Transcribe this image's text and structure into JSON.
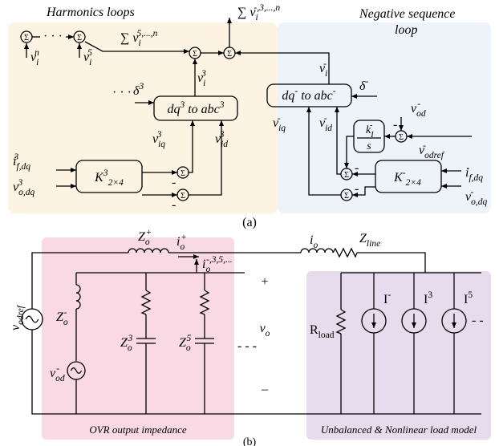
{
  "panel_a": {
    "title_left": "Harmonics loops",
    "title_right_line1": "Negative sequence",
    "title_right_line2": "loop",
    "caption": "(a)",
    "sum_symbol": "Σ",
    "dots": "· · ·",
    "minus": "-",
    "v_i_n": [
      {
        "text": "v"
      },
      {
        "text": "i",
        "script": "sub"
      },
      {
        "text": "n",
        "script": "sup"
      }
    ],
    "v_i_5": [
      {
        "text": "v"
      },
      {
        "text": "i",
        "script": "sub"
      },
      {
        "text": "5",
        "script": "sup"
      }
    ],
    "sum_harmonics": [
      {
        "text": "∑ v"
      },
      {
        "text": "i",
        "script": "sub"
      },
      {
        "text": "5,...,n",
        "script": "sup"
      }
    ],
    "sum_output": [
      {
        "text": "∑ v"
      },
      {
        "text": "i",
        "script": "sub"
      },
      {
        "text": "-,3,...,n",
        "script": "sup"
      }
    ],
    "delta_3": [
      {
        "text": "δ"
      },
      {
        "text": "3",
        "script": "sup"
      }
    ],
    "v_i_3": [
      {
        "text": "v"
      },
      {
        "text": "i",
        "script": "sub"
      },
      {
        "text": "3",
        "script": "sup"
      }
    ],
    "box_dq3": [
      {
        "text": "dq"
      },
      {
        "text": "3",
        "script": "sup"
      },
      {
        "text": " to abc"
      },
      {
        "text": "3",
        "script": "sup"
      }
    ],
    "v_iq_3": [
      {
        "text": "v"
      },
      {
        "text": "iq",
        "script": "sub"
      },
      {
        "text": "3",
        "script": "sup"
      }
    ],
    "v_id_3": [
      {
        "text": "v"
      },
      {
        "text": "id",
        "script": "sub"
      },
      {
        "text": "3",
        "script": "sup"
      }
    ],
    "i_fdq_3": [
      {
        "text": "i"
      },
      {
        "text": "f,dq",
        "script": "sub"
      },
      {
        "text": "3",
        "script": "sup"
      }
    ],
    "v_odq_3": [
      {
        "text": "v"
      },
      {
        "text": "o,dq",
        "script": "sub"
      },
      {
        "text": "3",
        "script": "sup"
      }
    ],
    "box_K3": [
      {
        "text": "K"
      },
      {
        "text": "3",
        "script": "sup"
      },
      {
        "text": "2×4",
        "script": "sub"
      }
    ],
    "v_i_neg": [
      {
        "text": "v"
      },
      {
        "text": "i",
        "script": "sub"
      },
      {
        "text": "-",
        "script": "sup"
      }
    ],
    "box_dqneg": [
      {
        "text": "dq"
      },
      {
        "text": "-",
        "script": "sup"
      },
      {
        "text": " to abc"
      },
      {
        "text": "-",
        "script": "sup"
      }
    ],
    "delta_neg": [
      {
        "text": "δ"
      },
      {
        "text": "-",
        "script": "sup"
      }
    ],
    "v_iq_neg": [
      {
        "text": "v"
      },
      {
        "text": "iq",
        "script": "sub"
      },
      {
        "text": "-",
        "script": "sup"
      }
    ],
    "v_id_neg": [
      {
        "text": "v"
      },
      {
        "text": "id",
        "script": "sub"
      },
      {
        "text": "-",
        "script": "sup"
      }
    ],
    "v_od_neg": [
      {
        "text": "v"
      },
      {
        "text": "od",
        "script": "sub"
      },
      {
        "text": "-",
        "script": "sup"
      }
    ],
    "v_odref_neg": [
      {
        "text": "v"
      },
      {
        "text": "odref",
        "script": "sub"
      },
      {
        "text": "-",
        "script": "sup"
      }
    ],
    "k_I_neg": [
      {
        "text": "k"
      },
      {
        "text": "I",
        "script": "sub"
      },
      {
        "text": "-",
        "script": "sup"
      }
    ],
    "s": "s",
    "box_Kneg": [
      {
        "text": "K"
      },
      {
        "text": "-",
        "script": "sup"
      },
      {
        "text": "2×4",
        "script": "sub"
      }
    ],
    "i_fdq_neg": [
      {
        "text": "i"
      },
      {
        "text": "f,dq",
        "script": "sub"
      },
      {
        "text": "-",
        "script": "sup"
      }
    ],
    "v_odq_neg": [
      {
        "text": "v"
      },
      {
        "text": "o,dq",
        "script": "sub"
      },
      {
        "text": "-",
        "script": "sup"
      }
    ]
  },
  "panel_b": {
    "caption": "(b)",
    "region_left": "OVR output impedance",
    "region_right": "Unbalanced & Nonlinear load model",
    "v_odref": [
      {
        "text": "v"
      },
      {
        "text": "odref",
        "script": "sub"
      }
    ],
    "Z_o_plus": [
      {
        "text": "Z"
      },
      {
        "text": "o",
        "script": "sub"
      },
      {
        "text": "+",
        "script": "sup"
      }
    ],
    "i_o_plus": [
      {
        "text": "i"
      },
      {
        "text": "o",
        "script": "sub"
      },
      {
        "text": "+",
        "script": "sup"
      }
    ],
    "i_o": [
      {
        "text": "i"
      },
      {
        "text": "o",
        "script": "sub"
      }
    ],
    "Z_line": [
      {
        "text": "Z"
      },
      {
        "text": "line",
        "script": "sub"
      }
    ],
    "i_o_harm": [
      {
        "text": "i"
      },
      {
        "text": "o",
        "script": "sub"
      },
      {
        "text": "-,3,5,...",
        "script": "sup"
      }
    ],
    "plus": "+",
    "v_o": [
      {
        "text": "v"
      },
      {
        "text": "o",
        "script": "sub"
      }
    ],
    "minus": "–",
    "Z_o_neg": [
      {
        "text": "Z"
      },
      {
        "text": "o",
        "script": "sub"
      },
      {
        "text": "-",
        "script": "sup"
      }
    ],
    "v_od_neg": [
      {
        "text": "v"
      },
      {
        "text": "od",
        "script": "sub"
      },
      {
        "text": "-",
        "script": "sup"
      }
    ],
    "Z_o_3": [
      {
        "text": "Z"
      },
      {
        "text": "o",
        "script": "sub"
      },
      {
        "text": "3",
        "script": "sup"
      }
    ],
    "Z_o_5": [
      {
        "text": "Z"
      },
      {
        "text": "o",
        "script": "sub"
      },
      {
        "text": "5",
        "script": "sup"
      }
    ],
    "dashes": "- - -",
    "R_load": [
      {
        "text": "R"
      },
      {
        "text": "load",
        "script": "sub"
      }
    ],
    "I_neg": [
      {
        "text": "I"
      },
      {
        "text": "-",
        "script": "sup"
      }
    ],
    "I_3": [
      {
        "text": "I"
      },
      {
        "text": "3",
        "script": "sup"
      }
    ],
    "I_5": [
      {
        "text": "I"
      },
      {
        "text": "5",
        "script": "sup"
      }
    ],
    "load_dashes": "- -"
  }
}
